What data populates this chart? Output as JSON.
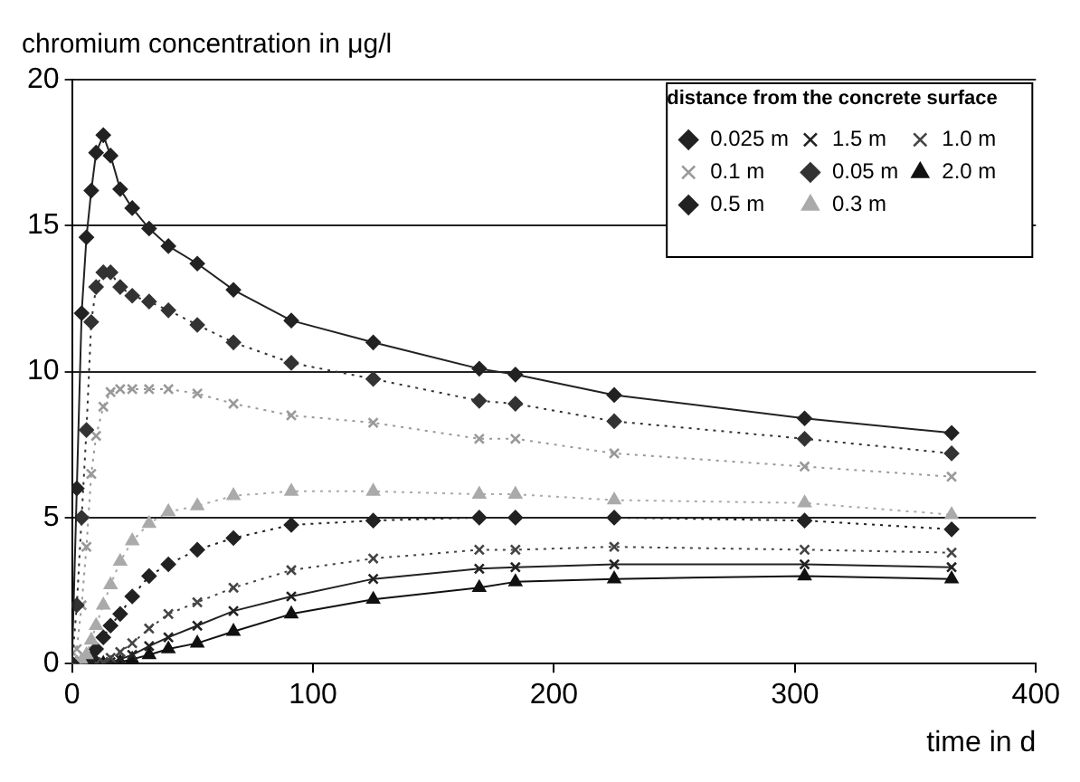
{
  "chart_data": {
    "type": "line",
    "xlabel": "time in d",
    "ylabel": "chromium concentration in μg/l",
    "legend_title": "distance from the concrete surface",
    "x": [
      0,
      2,
      4,
      6,
      8,
      10,
      13,
      16,
      20,
      25,
      32,
      40,
      52,
      67,
      91,
      125,
      169,
      184,
      225,
      304,
      365
    ],
    "series": [
      {
        "name": "0.025 m",
        "color": "#222222",
        "marker": "diamond",
        "line_style": "solid",
        "values": [
          0,
          6,
          12,
          14.6,
          16.2,
          17.5,
          18.1,
          17.4,
          16.25,
          15.6,
          14.9,
          14.3,
          13.7,
          12.8,
          11.75,
          11.0,
          10.1,
          9.9,
          9.2,
          8.4,
          7.9
        ]
      },
      {
        "name": "0.05 m",
        "color": "#333333",
        "marker": "diamond",
        "line_style": "dotted",
        "values": [
          0,
          2,
          5,
          8,
          11.7,
          12.9,
          13.4,
          13.4,
          12.9,
          12.6,
          12.4,
          12.1,
          11.6,
          11.0,
          10.3,
          9.75,
          9.0,
          8.9,
          8.3,
          7.7,
          7.2
        ]
      },
      {
        "name": "0.1 m",
        "color": "#999999",
        "marker": "cross",
        "line_style": "dotted",
        "values": [
          0,
          0.5,
          2,
          4,
          6.5,
          7.8,
          8.8,
          9.3,
          9.4,
          9.4,
          9.4,
          9.4,
          9.25,
          8.9,
          8.5,
          8.25,
          7.7,
          7.7,
          7.2,
          6.75,
          6.4
        ]
      },
      {
        "name": "0.3 m",
        "color": "#aaaaaa",
        "marker": "triangle",
        "line_style": "dotted",
        "values": [
          0,
          0,
          0.1,
          0.3,
          0.8,
          1.3,
          2.0,
          2.7,
          3.5,
          4.2,
          4.8,
          5.2,
          5.4,
          5.75,
          5.9,
          5.9,
          5.8,
          5.8,
          5.6,
          5.5,
          5.1
        ]
      },
      {
        "name": "0.5 m",
        "color": "#222222",
        "marker": "diamond",
        "line_style": "dotted",
        "values": [
          0,
          0,
          0,
          0.05,
          0.2,
          0.5,
          0.9,
          1.3,
          1.7,
          2.3,
          3.0,
          3.4,
          3.9,
          4.3,
          4.75,
          4.9,
          5.0,
          5.0,
          5.0,
          4.9,
          4.6
        ]
      },
      {
        "name": "1.0 m",
        "color": "#444444",
        "marker": "cross",
        "line_style": "dotted",
        "values": [
          0,
          0,
          0,
          0,
          0,
          0,
          0.05,
          0.2,
          0.4,
          0.7,
          1.2,
          1.7,
          2.1,
          2.6,
          3.2,
          3.6,
          3.9,
          3.9,
          4.0,
          3.9,
          3.8
        ]
      },
      {
        "name": "1.5 m",
        "color": "#222222",
        "marker": "cross",
        "line_style": "solid",
        "values": [
          0,
          0,
          0,
          0,
          0,
          0,
          0,
          0.05,
          0.15,
          0.3,
          0.6,
          0.9,
          1.3,
          1.8,
          2.3,
          2.9,
          3.25,
          3.3,
          3.4,
          3.4,
          3.3
        ]
      },
      {
        "name": "2.0 m",
        "color": "#111111",
        "marker": "triangle",
        "line_style": "solid",
        "values": [
          0,
          0,
          0,
          0,
          0,
          0,
          0,
          0,
          0.05,
          0.15,
          0.3,
          0.5,
          0.7,
          1.1,
          1.7,
          2.2,
          2.6,
          2.8,
          2.9,
          3.0,
          2.9
        ]
      }
    ],
    "xlim": [
      0,
      400
    ],
    "xticks": [
      0,
      100,
      200,
      300,
      400
    ],
    "ylim": [
      0,
      20
    ],
    "yticks": [
      0,
      5,
      10,
      15,
      20
    ],
    "grid": "y",
    "legend": "top right"
  }
}
